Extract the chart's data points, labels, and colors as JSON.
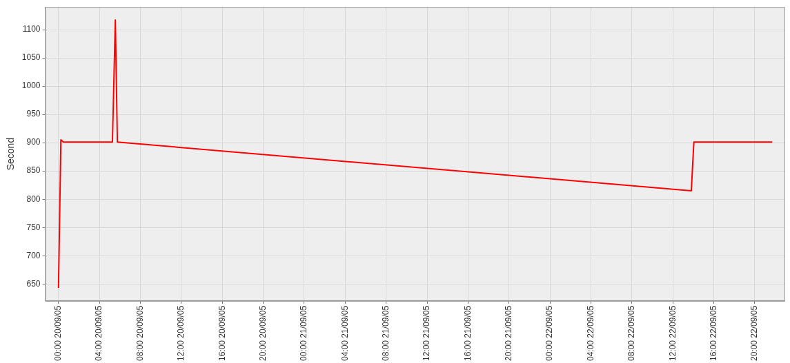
{
  "chart_data": {
    "type": "line",
    "ylabel": "Second",
    "x": [
      "--09-20T00:00",
      "--09-20T00:14",
      "--09-20T00:29",
      "--09-20T05:16",
      "--09-20T05:33",
      "--09-20T05:45",
      "--09-22T13:48",
      "--09-22T14:03",
      "--09-22T21:42"
    ],
    "series": [
      {
        "color": "#ff0000",
        "values": [
          643,
          905,
          901,
          901,
          1117,
          901,
          815,
          901,
          901
        ]
      }
    ],
    "xlim": [
      "--09-19T22:42",
      "--09-22T22:54"
    ],
    "xticks": [
      {
        "value": "--09-20T00:00",
        "label": "00:00 20/09/05"
      },
      {
        "value": "--09-20T04:00",
        "label": "04:00 20/09/05"
      },
      {
        "value": "--09-20T08:00",
        "label": "08:00 20/09/05"
      },
      {
        "value": "--09-20T12:00",
        "label": "12:00 20/09/05"
      },
      {
        "value": "--09-20T16:00",
        "label": "16:00 20/09/05"
      },
      {
        "value": "--09-20T20:00",
        "label": "20:00 20/09/05"
      },
      {
        "value": "--09-21T00:00",
        "label": "00:00 21/09/05"
      },
      {
        "value": "--09-21T04:00",
        "label": "04:00 21/09/05"
      },
      {
        "value": "--09-21T08:00",
        "label": "08:00 21/09/05"
      },
      {
        "value": "--09-21T12:00",
        "label": "12:00 21/09/05"
      },
      {
        "value": "--09-21T16:00",
        "label": "16:00 21/09/05"
      },
      {
        "value": "--09-21T20:00",
        "label": "20:00 21/09/05"
      },
      {
        "value": "--09-22T00:00",
        "label": "00:00 22/09/05"
      },
      {
        "value": "--09-22T04:00",
        "label": "04:00 22/09/05"
      },
      {
        "value": "--09-22T08:00",
        "label": "08:00 22/09/05"
      },
      {
        "value": "--09-22T12:00",
        "label": "12:00 22/09/05"
      },
      {
        "value": "--09-22T16:00",
        "label": "16:00 22/09/05"
      },
      {
        "value": "--09-22T20:00",
        "label": "20:00 22/09/05"
      }
    ],
    "ylim": [
      620,
      1140
    ],
    "yticks": [
      650,
      700,
      750,
      800,
      850,
      900,
      950,
      1000,
      1050,
      1100
    ],
    "grid": true,
    "legend": false,
    "marker": "none",
    "line_style": "solid"
  }
}
